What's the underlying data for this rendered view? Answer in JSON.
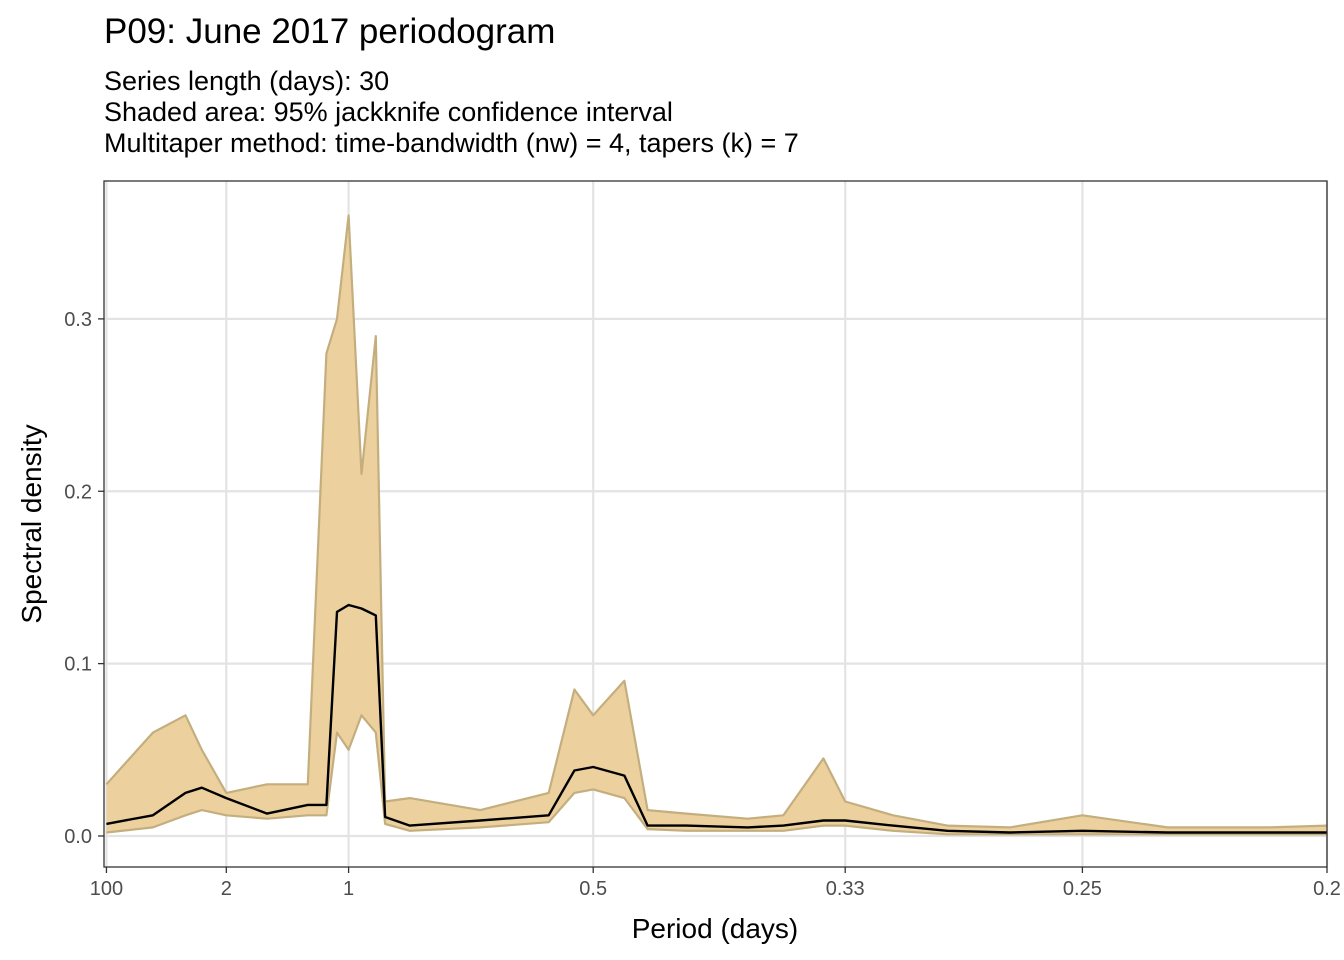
{
  "chart_data": {
    "type": "area",
    "title": "P09: June 2017 periodogram",
    "subtitle": [
      "Series length (days): 30",
      "Shaded area: 95% jackknife confidence interval",
      "Multitaper method: time-bandwidth (nw) = 4, tapers (k) = 7"
    ],
    "xlabel": "Period (days)",
    "ylabel": "Spectral density",
    "x_axis_note": "reciprocal axis: tick labels show period (days)",
    "x_ticks": [
      "100",
      "2",
      "1",
      "0.5",
      "0.33",
      "0.25",
      "0.2"
    ],
    "y_ticks": [
      "0.0",
      "0.1",
      "0.2",
      "0.3"
    ],
    "ylim": [
      -0.018,
      0.38
    ],
    "grid": true,
    "series": [
      {
        "role": "estimate",
        "color": "#000000",
        "x": [
          100,
          5,
          3,
          2.5,
          2,
          1.5,
          1.2,
          1.1,
          1.05,
          1.0,
          0.95,
          0.9,
          0.87,
          0.8,
          0.65,
          0.55,
          0.52,
          0.5,
          0.47,
          0.45,
          0.42,
          0.38,
          0.36,
          0.34,
          0.33,
          0.31,
          0.29,
          0.27,
          0.25,
          0.23,
          0.21,
          0.2
        ],
        "y": [
          0.007,
          0.012,
          0.025,
          0.028,
          0.022,
          0.013,
          0.018,
          0.018,
          0.13,
          0.134,
          0.132,
          0.128,
          0.011,
          0.006,
          0.009,
          0.012,
          0.038,
          0.04,
          0.035,
          0.006,
          0.006,
          0.005,
          0.006,
          0.009,
          0.009,
          0.006,
          0.003,
          0.002,
          0.003,
          0.002,
          0.002,
          0.002
        ]
      },
      {
        "role": "ci_upper",
        "color": "#c4ae7e",
        "x": [
          100,
          5,
          3,
          2.5,
          2,
          1.5,
          1.2,
          1.1,
          1.05,
          1.0,
          0.95,
          0.9,
          0.87,
          0.8,
          0.65,
          0.55,
          0.52,
          0.5,
          0.47,
          0.45,
          0.42,
          0.38,
          0.36,
          0.34,
          0.33,
          0.31,
          0.29,
          0.27,
          0.25,
          0.23,
          0.21,
          0.2
        ],
        "y": [
          0.03,
          0.06,
          0.07,
          0.05,
          0.025,
          0.03,
          0.03,
          0.28,
          0.3,
          0.36,
          0.21,
          0.29,
          0.02,
          0.022,
          0.015,
          0.025,
          0.085,
          0.07,
          0.09,
          0.015,
          0.013,
          0.01,
          0.012,
          0.045,
          0.02,
          0.012,
          0.006,
          0.005,
          0.012,
          0.005,
          0.005,
          0.006
        ]
      },
      {
        "role": "ci_lower",
        "color": "#c4ae7e",
        "x": [
          100,
          5,
          3,
          2.5,
          2,
          1.5,
          1.2,
          1.1,
          1.05,
          1.0,
          0.95,
          0.9,
          0.87,
          0.8,
          0.65,
          0.55,
          0.52,
          0.5,
          0.47,
          0.45,
          0.42,
          0.38,
          0.36,
          0.34,
          0.33,
          0.31,
          0.29,
          0.27,
          0.25,
          0.23,
          0.21,
          0.2
        ],
        "y": [
          0.002,
          0.005,
          0.012,
          0.015,
          0.012,
          0.01,
          0.012,
          0.012,
          0.06,
          0.05,
          0.07,
          0.06,
          0.007,
          0.003,
          0.005,
          0.008,
          0.025,
          0.027,
          0.022,
          0.004,
          0.003,
          0.003,
          0.003,
          0.006,
          0.006,
          0.003,
          0.001,
          0.001,
          0.001,
          0.001,
          0.001,
          0.001
        ]
      }
    ],
    "colors": {
      "band_fill": "#ecd19f",
      "band_edge": "#c4ae7e",
      "line": "#000000",
      "grid": "#e3e3e3",
      "panel_border": "#333333"
    }
  }
}
